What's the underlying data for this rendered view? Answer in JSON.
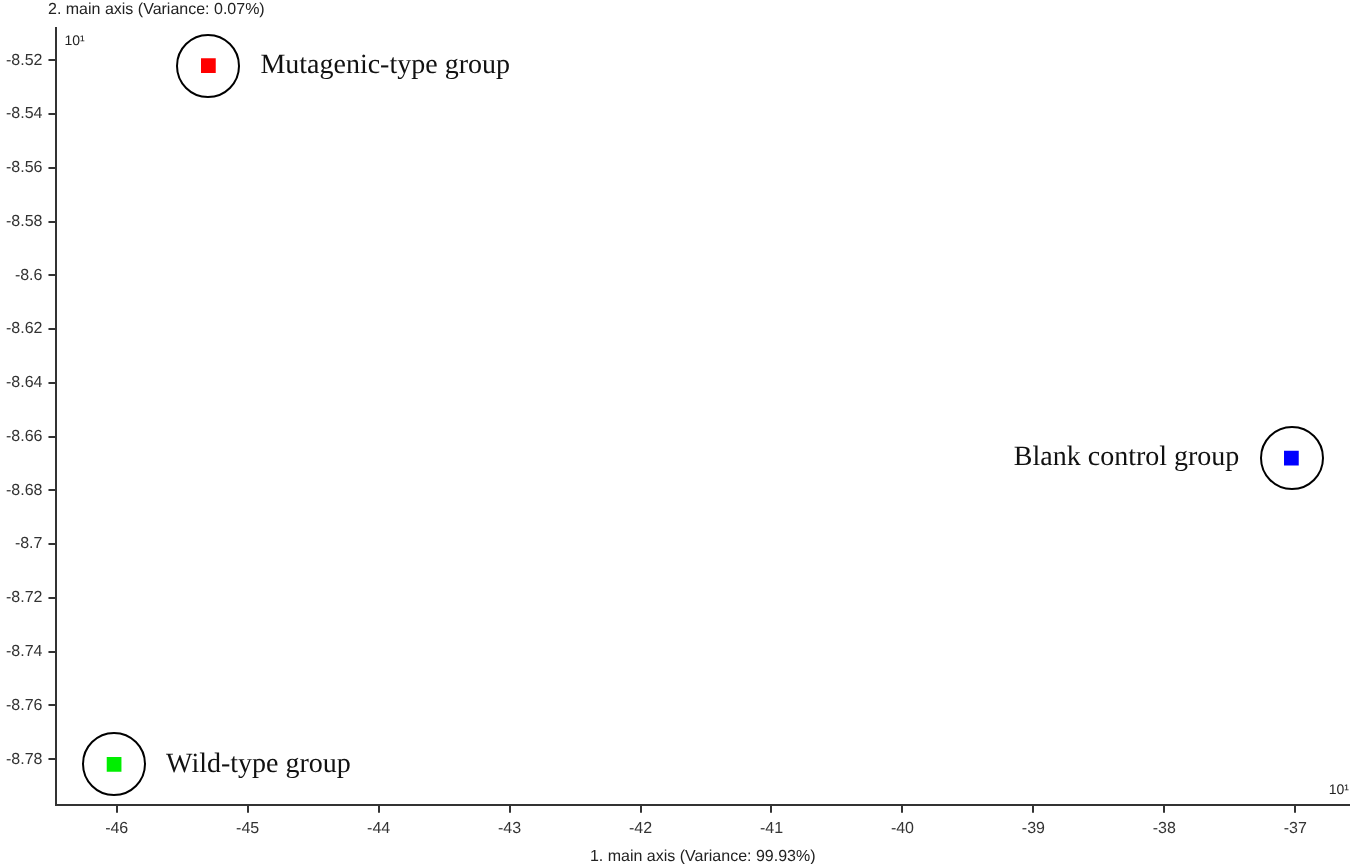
{
  "chart_data": {
    "type": "scatter",
    "xlabel": "1. main axis (Variance: 99.93%)",
    "ylabel": "2. main axis (Variance: 0.07%)",
    "series": [
      {
        "name": "Mutagenic-type group",
        "color": "#ff0000",
        "x": [
          -45.3
        ],
        "values": [
          -8.522
        ]
      },
      {
        "name": "Blank control group",
        "color": "#0000ff",
        "x": [
          -37.03
        ],
        "values": [
          -8.668
        ]
      },
      {
        "name": "Wild-type group",
        "color": "#00ee00",
        "x": [
          -46.02
        ],
        "values": [
          -8.782
        ]
      }
    ],
    "xlim": [
      -46.46,
      -36.59
    ],
    "xticks": [
      -46,
      -45,
      -44,
      -43,
      -42,
      -41,
      -40,
      -39,
      -38,
      -37
    ],
    "ylim": [
      -8.797,
      -8.508
    ],
    "yticks": [
      -8.52,
      -8.54,
      -8.56,
      -8.58,
      -8.6,
      -8.62,
      -8.64,
      -8.66,
      -8.68,
      -8.7,
      -8.72,
      -8.74,
      -8.76,
      -8.78
    ],
    "annotations": [
      "10¹",
      "10¹"
    ],
    "marker": "square",
    "grid": false,
    "legend": false
  }
}
